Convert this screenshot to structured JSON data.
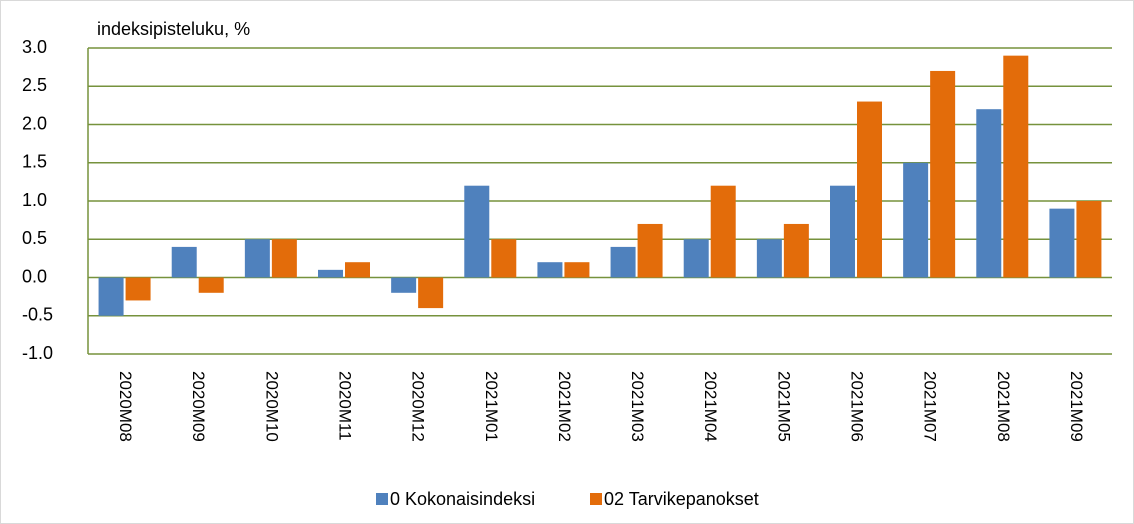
{
  "chart_data": {
    "type": "bar",
    "y_label": "indeksipisteluku, %",
    "categories": [
      "2020M08",
      "2020M09",
      "2020M10",
      "2020M11",
      "2020M12",
      "2021M01",
      "2021M02",
      "2021M03",
      "2021M04",
      "2021M05",
      "2021M06",
      "2021M07",
      "2021M08",
      "2021M09"
    ],
    "series": [
      {
        "name": "0 Kokonaisindeksi",
        "color": "#4f81bd",
        "values": [
          -0.5,
          0.4,
          0.5,
          0.1,
          -0.2,
          1.2,
          0.2,
          0.4,
          0.5,
          0.5,
          1.2,
          1.5,
          2.2,
          0.9
        ]
      },
      {
        "name": "02 Tarvikepanokset",
        "color": "#e36c0a",
        "values": [
          -0.3,
          -0.2,
          0.5,
          0.2,
          -0.4,
          0.5,
          0.2,
          0.7,
          1.2,
          0.7,
          2.3,
          2.7,
          2.9,
          1.0
        ]
      }
    ],
    "ylim": [
      -1,
      3
    ],
    "yticks": [
      {
        "value": -1,
        "label": "-1.0"
      },
      -0.5,
      {
        "value": 0,
        "label": "0.0"
      },
      0.5,
      {
        "value": 1,
        "label": "1.0"
      },
      1.5,
      {
        "value": 2,
        "label": "2.0"
      },
      2.5,
      {
        "value": 3,
        "label": "3.0"
      }
    ],
    "grid": true,
    "grid_color": "#76923c",
    "legend": "bottom"
  }
}
